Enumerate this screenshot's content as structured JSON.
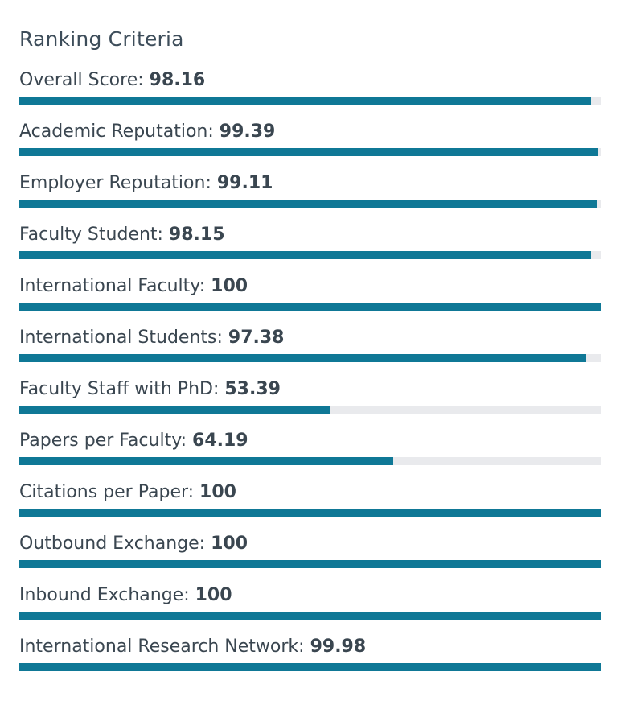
{
  "panel": {
    "title": "Ranking Criteria",
    "bar_color": "#0f7896",
    "track_color": "#e9eaed",
    "max_score": 100,
    "criteria": [
      {
        "label": "Overall Score:",
        "value": "98.16",
        "score": 98.16
      },
      {
        "label": "Academic Reputation:",
        "value": "99.39",
        "score": 99.39
      },
      {
        "label": "Employer Reputation:",
        "value": "99.11",
        "score": 99.11
      },
      {
        "label": "Faculty Student:",
        "value": "98.15",
        "score": 98.15
      },
      {
        "label": "International Faculty:",
        "value": "100",
        "score": 100
      },
      {
        "label": "International Students:",
        "value": "97.38",
        "score": 97.38
      },
      {
        "label": "Faculty Staff with PhD:",
        "value": "53.39",
        "score": 53.39
      },
      {
        "label": "Papers per Faculty:",
        "value": "64.19",
        "score": 64.19
      },
      {
        "label": "Citations per Paper:",
        "value": "100",
        "score": 100
      },
      {
        "label": "Outbound Exchange:",
        "value": "100",
        "score": 100
      },
      {
        "label": "Inbound Exchange:",
        "value": "100",
        "score": 100
      },
      {
        "label": "International Research Network:",
        "value": "99.98",
        "score": 99.98
      }
    ]
  }
}
